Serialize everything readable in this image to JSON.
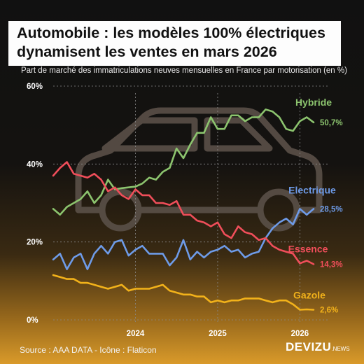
{
  "header": {
    "title_line1": "Automobile : les modèles 100% électriques",
    "title_line2": "dynamisent les ventes en mars 2026",
    "subtitle": "Part de marché des immatriculations neuves mensuelles en France par motorisation (en %)"
  },
  "footer": {
    "source": "Source : AAA DATA - Icône : Flaticon",
    "brand": "DEVIZU",
    "brand_suffix": ".NEWS"
  },
  "colors": {
    "hybride": "#8cc46e",
    "electrique": "#6e9be8",
    "essence": "#f04e5a",
    "gazole": "#f2b21a",
    "grid": "#8a8a8a",
    "car_icon": "#5a5048"
  },
  "chart_data": {
    "type": "line",
    "x_start": "2023-01",
    "x_end": "2026-03",
    "x_ticks": [
      {
        "label": "2024",
        "value": "2024-01"
      },
      {
        "label": "2025",
        "value": "2025-01"
      },
      {
        "label": "2026",
        "value": "2026-01"
      }
    ],
    "y_ticks": [
      "0%",
      "20%",
      "40%",
      "60%"
    ],
    "ylim": [
      0,
      60
    ],
    "grid": true,
    "legend": "inline-right",
    "series": [
      {
        "name": "Hybride",
        "key": "hybride",
        "end_label": "50,7%",
        "values": [
          28.5,
          27,
          29,
          30,
          31,
          33,
          30,
          32,
          36,
          33.5,
          33.8,
          34,
          34.2,
          35,
          36.5,
          36,
          38,
          39,
          44,
          41.5,
          45,
          48,
          48,
          52,
          49,
          49,
          52.5,
          52.5,
          51,
          52,
          52,
          54,
          53.5,
          52,
          49,
          48.5,
          51,
          52,
          50.7
        ]
      },
      {
        "name": "Electrique",
        "key": "electrique",
        "end_label": "28,5%",
        "values": [
          15.5,
          17,
          13,
          16,
          17,
          13,
          17,
          19,
          17,
          20,
          20.5,
          16.5,
          18,
          19,
          17,
          17,
          17,
          14,
          16,
          20.5,
          15.5,
          17.5,
          16,
          17.5,
          18,
          19,
          17.5,
          18,
          16,
          17,
          17.5,
          21,
          23.5,
          25,
          26,
          24.5,
          28.5,
          27,
          28.5
        ]
      },
      {
        "name": "Essence",
        "key": "essence",
        "end_label": "14,3%",
        "values": [
          37,
          39,
          40.5,
          37.5,
          37,
          36.5,
          37.5,
          36,
          33,
          34,
          32,
          31,
          33.5,
          32,
          32,
          30,
          30,
          29.5,
          30.5,
          27,
          27,
          25.5,
          25,
          24,
          25,
          22,
          21,
          24,
          22.5,
          22,
          20.5,
          21,
          19,
          18,
          17.5,
          17,
          14.5,
          15.2,
          14.3
        ]
      },
      {
        "name": "Gazole",
        "key": "gazole",
        "end_label": "2,6%",
        "values": [
          11.5,
          11,
          10.5,
          10.5,
          9.5,
          9.5,
          9,
          8.5,
          8,
          8.5,
          9,
          7.5,
          8,
          8,
          8,
          8.5,
          9,
          7.5,
          7,
          6.5,
          6.5,
          6,
          6,
          4.5,
          5,
          4.5,
          5,
          5,
          5.5,
          5.5,
          5.5,
          5,
          4.5,
          5,
          5,
          4,
          2.6,
          2.7,
          2.6
        ]
      }
    ]
  }
}
